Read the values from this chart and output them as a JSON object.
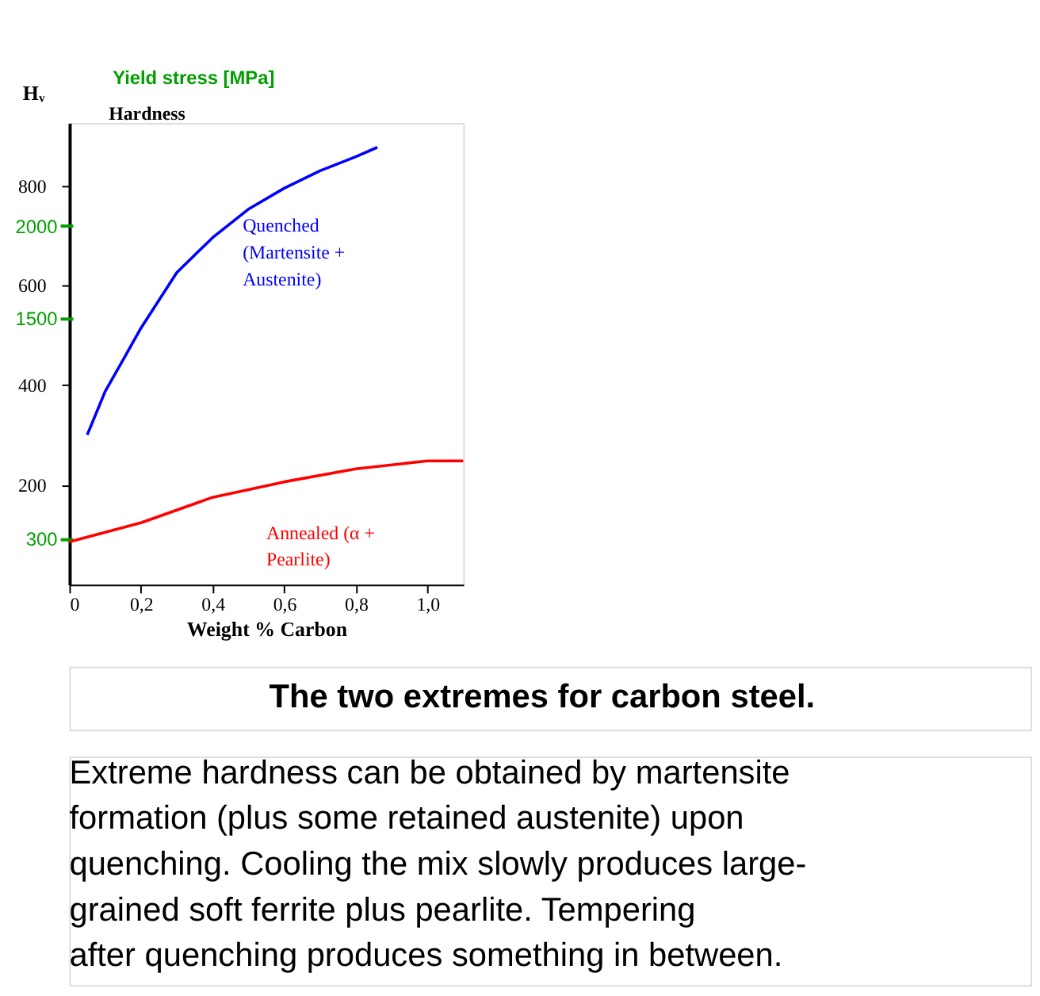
{
  "chart_data": {
    "type": "line",
    "xlabel": "Weight % Carbon",
    "ylabel": "Hᵥ",
    "y2label": "Yield stress [MPa]",
    "annotations": [
      "Hardness",
      "The two extremes for carbon steel.",
      "Extreme hardness can be obtained by martensite formation (plus some retained austenite) upon quenching. Cooling the mix slowly produces large-grained soft ferrite plus pearlite. Tempering after quenching produces something in between."
    ],
    "series": [
      {
        "name": "Quenched (Martensite + Austenite)",
        "color": "#0000ff",
        "x": [
          0.05,
          0.1,
          0.15,
          0.2,
          0.3,
          0.4,
          0.5,
          0.6,
          0.7,
          0.8,
          0.86
        ],
        "values": [
          300,
          387,
          450,
          514,
          625,
          695,
          752,
          794,
          829,
          857,
          876
        ]
      },
      {
        "name": "Annealed (α + Pearlite)",
        "color": "#ff0000",
        "x": [
          0,
          0.2,
          0.4,
          0.6,
          0.8,
          1.0,
          1.1
        ],
        "values": [
          86,
          124,
          175,
          206,
          232,
          248,
          248
        ]
      }
    ],
    "xlim": [
      0,
      1.1
    ],
    "xticks": [
      0,
      {
        "value": 0.2,
        "label": "0,2"
      },
      {
        "value": 0.4,
        "label": "0,4"
      },
      {
        "value": 0.6,
        "label": "0,6"
      },
      {
        "value": 0.8,
        "label": "0,8"
      },
      {
        "value": 1.0,
        "label": "1,0"
      }
    ],
    "ylim": [
      0,
      925
    ],
    "yticks": [
      200,
      400,
      600,
      800
    ],
    "y2lim": [
      50,
      2560
    ],
    "y2ticks": [
      300,
      1500,
      2000
    ],
    "grid": false,
    "legend": false,
    "marker": "none",
    "line_style": "solid"
  }
}
